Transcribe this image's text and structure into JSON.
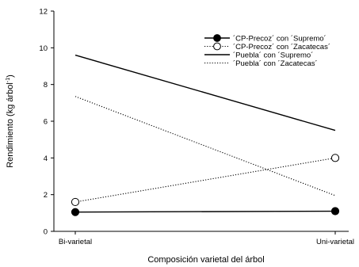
{
  "chart_data": {
    "type": "line",
    "categories": [
      "Bi-varietal",
      "Uni-varietal"
    ],
    "xlabel": "Composición varietal del árbol",
    "ylabel_main": "Rendimiento (kg árbol",
    "ylabel_sup": "-1",
    "ylabel_end": ")",
    "ylim": [
      0,
      12
    ],
    "yticks": [
      "0",
      "2",
      "4",
      "6",
      "8",
      "10",
      "12"
    ],
    "grid": false,
    "legend_position": "top-right",
    "series": [
      {
        "name": "´CP-Precoz´ con ´Supremo´",
        "values": [
          1.05,
          1.1
        ],
        "style": "solid",
        "marker": "filled-circle",
        "color": "#000000"
      },
      {
        "name": "´CP-Precoz´ con ´Zacatecas´",
        "values": [
          1.6,
          4.0
        ],
        "style": "dotted",
        "marker": "open-circle",
        "color": "#000000"
      },
      {
        "name": "´Puebla´ con ´Supremo´",
        "values": [
          9.6,
          5.5
        ],
        "style": "solid",
        "marker": "none",
        "color": "#000000"
      },
      {
        "name": "´Puebla´ con ´Zacatecas´",
        "values": [
          7.35,
          1.95
        ],
        "style": "dotted",
        "marker": "none",
        "color": "#000000"
      }
    ]
  }
}
